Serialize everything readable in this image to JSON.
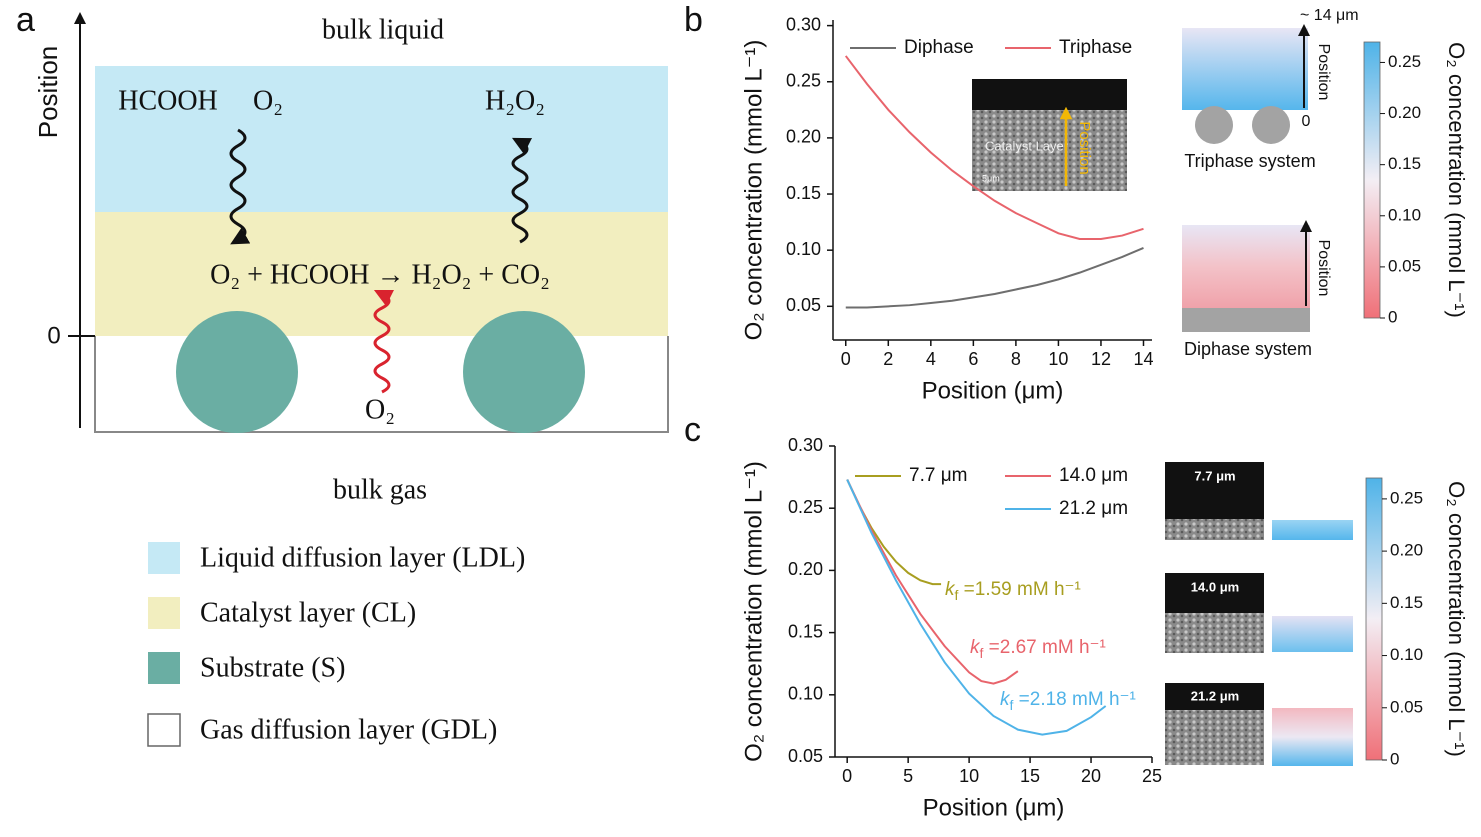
{
  "panel_labels": [
    "a",
    "b",
    "c"
  ],
  "diagram": {
    "axis_label": "Position",
    "zero": "0",
    "top": "bulk liquid",
    "bottom": "bulk gas",
    "reactant_1": "HCOOH",
    "reactant_2": "O₂",
    "product": "H₂O₂",
    "reaction": "O₂ + HCOOH → H₂O₂ + CO₂",
    "gas_species": "O₂",
    "legend": [
      {
        "label": "Liquid diffusion layer (LDL)",
        "color": "#c5e9f5"
      },
      {
        "label": "Catalyst layer (CL)",
        "color": "#f2eebf"
      },
      {
        "label": "Substrate (S)",
        "color": "#6aaea3"
      },
      {
        "label": "Gas diffusion layer (GDL)",
        "color": "#ffffff"
      }
    ]
  },
  "chart_data": [
    {
      "type": "line",
      "xlabel": "Position (μm)",
      "ylabel": "O₂ concentration (mmol L⁻¹)",
      "xlim": [
        -0.6,
        14.4
      ],
      "ylim": [
        0.02,
        0.305
      ],
      "xticks": [
        0,
        2,
        4,
        6,
        8,
        10,
        12,
        14
      ],
      "yticks": [
        0.05,
        {
          "value": 0.1,
          "label": "0.10"
        },
        0.15,
        {
          "value": 0.2,
          "label": "0.20"
        },
        0.25,
        {
          "value": 0.3,
          "label": "0.30"
        }
      ],
      "legend": "upper",
      "x": [
        0,
        1,
        2,
        3,
        4,
        5,
        6,
        7,
        8,
        9,
        10,
        11,
        12,
        13,
        14
      ],
      "series": [
        {
          "name": "Diphase",
          "color": "#6e6e6e",
          "values": [
            0.049,
            0.049,
            0.05,
            0.051,
            0.053,
            0.055,
            0.058,
            0.061,
            0.065,
            0.069,
            0.074,
            0.08,
            0.087,
            0.094,
            0.102
          ]
        },
        {
          "name": "Triphase",
          "color": "#e8646c",
          "values": [
            0.273,
            0.248,
            0.225,
            0.205,
            0.187,
            0.171,
            0.157,
            0.144,
            0.133,
            0.124,
            0.115,
            0.11,
            0.11,
            0.113,
            0.119
          ]
        }
      ],
      "inset": {
        "label": "Catalyst Layer",
        "arrow_label": "Position",
        "scale": "5μm"
      },
      "schematic": {
        "thickness": "~ 14 μm",
        "zero": "0",
        "position_top": "Position",
        "triphase": "Triphase system",
        "position_bottom": "Position",
        "diphase": "Diphase system"
      },
      "colorbar": {
        "label": "O₂ concentration (mmol L⁻¹)",
        "lim": [
          0,
          0.27
        ],
        "ticks": [
          0,
          0.05,
          {
            "value": 0.1,
            "label": "0.10"
          },
          0.15,
          {
            "value": 0.2,
            "label": "0.20"
          },
          0.25
        ],
        "colors": [
          "#f07078",
          "#f3eef4",
          "#4fb3e8"
        ]
      }
    },
    {
      "type": "line",
      "xlabel": "Position (μm)",
      "ylabel": "O₂ concentration (mmol L⁻¹)",
      "xlim": [
        -1,
        25
      ],
      "ylim": [
        0.05,
        0.3
      ],
      "xticks": [
        0,
        5,
        10,
        15,
        20,
        25
      ],
      "yticks": [
        0.05,
        {
          "value": 0.1,
          "label": "0.10"
        },
        0.15,
        {
          "value": 0.2,
          "label": "0.20"
        },
        0.25,
        {
          "value": 0.3,
          "label": "0.30"
        }
      ],
      "legend": "upper",
      "series": [
        {
          "name": "7.7 μm",
          "color": "#a89e20",
          "x": [
            0,
            1,
            2,
            3,
            4,
            5,
            6,
            7,
            7.7
          ],
          "values": [
            0.273,
            0.252,
            0.234,
            0.219,
            0.207,
            0.198,
            0.192,
            0.189,
            0.189
          ]
        },
        {
          "name": "14.0 μm",
          "color": "#e8646c",
          "x": [
            0,
            2,
            4,
            6,
            8,
            10,
            11,
            12,
            13,
            14
          ],
          "values": [
            0.273,
            0.232,
            0.196,
            0.165,
            0.139,
            0.118,
            0.111,
            0.109,
            0.112,
            0.119
          ]
        },
        {
          "name": "21.2 μm",
          "color": "#4fb3e8",
          "x": [
            0,
            2,
            4,
            6,
            8,
            10,
            12,
            14,
            16,
            18,
            20,
            21.2
          ],
          "values": [
            0.273,
            0.23,
            0.192,
            0.157,
            0.126,
            0.101,
            0.083,
            0.072,
            0.068,
            0.071,
            0.082,
            0.091
          ]
        }
      ],
      "annotations": [
        "kf =1.59 mM h⁻¹",
        "kf =2.67 mM h⁻¹",
        "kf =2.18 mM h⁻¹"
      ],
      "image_labels": [
        "7.7 μm",
        "14.0 μm",
        "21.2 μm"
      ],
      "colorbar": {
        "label": "O₂ concentration (mmol L⁻¹)",
        "lim": [
          0,
          0.27
        ],
        "ticks": [
          0,
          0.05,
          {
            "value": 0.1,
            "label": "0.10"
          },
          0.15,
          {
            "value": 0.2,
            "label": "0.20"
          },
          0.25
        ],
        "colors": [
          "#f07078",
          "#f3eef4",
          "#4fb3e8"
        ]
      }
    }
  ]
}
